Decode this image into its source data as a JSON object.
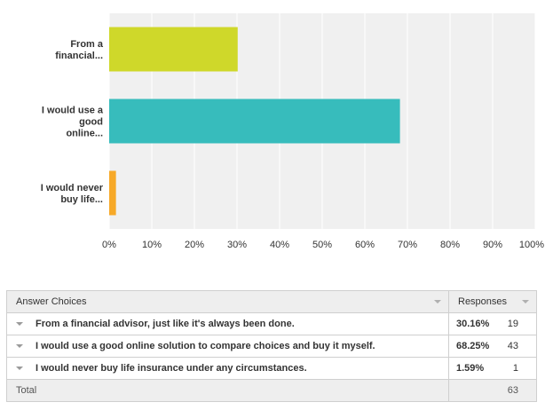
{
  "chart_data": {
    "type": "bar",
    "orientation": "horizontal",
    "categories": [
      "From a financial...",
      "I would use a good online...",
      "I would never buy life..."
    ],
    "values": [
      30.16,
      68.25,
      1.59
    ],
    "colors": [
      "#cfd82a",
      "#37bcbc",
      "#f7a928"
    ],
    "xlim": [
      0,
      100
    ],
    "x_ticks": [
      "0%",
      "10%",
      "20%",
      "30%",
      "40%",
      "50%",
      "60%",
      "70%",
      "80%",
      "90%",
      "100%"
    ],
    "grid": true,
    "plot_background": "#f0f0f0",
    "grid_color": "#ffffff"
  },
  "table": {
    "headers": {
      "choices": "Answer Choices",
      "responses": "Responses"
    },
    "rows": [
      {
        "choice": "From a financial advisor, just like it's always been done.",
        "percent": "30.16%",
        "count": "19"
      },
      {
        "choice": "I would use a good online solution to compare choices and buy it myself.",
        "percent": "68.25%",
        "count": "43"
      },
      {
        "choice": "I would never buy life insurance under any circumstances.",
        "percent": "1.59%",
        "count": "1"
      }
    ],
    "total_label": "Total",
    "total_count": "63"
  }
}
